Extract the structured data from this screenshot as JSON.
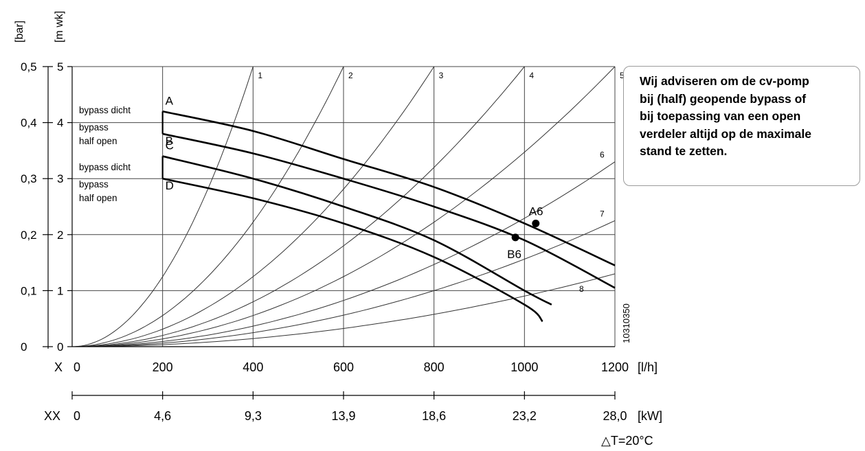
{
  "chart_data": {
    "type": "line",
    "y_axis_left": {
      "unit": "[bar]",
      "ticks": [
        "0",
        "0,1",
        "0,2",
        "0,3",
        "0,4",
        "0,5"
      ],
      "range": [
        0,
        0.5
      ]
    },
    "y_axis_right": {
      "unit": "[m wk]",
      "ticks": [
        "0",
        "1",
        "2",
        "3",
        "4",
        "5"
      ],
      "range": [
        0,
        5
      ]
    },
    "x_axis": {
      "name": "X",
      "unit": "[l/h]",
      "ticks": [
        "0",
        "200",
        "400",
        "600",
        "800",
        "1000",
        "1200"
      ],
      "range": [
        0,
        1200
      ]
    },
    "x_axis_2": {
      "name": "XX",
      "unit": "[kW]",
      "ticks": [
        "0",
        "4,6",
        "9,3",
        "13,9",
        "18,6",
        "23,2",
        "28,0"
      ]
    },
    "delta_t": "△T=20°C",
    "figure_id": "10310350",
    "grid": true,
    "series": [
      {
        "name": "A",
        "labels": [
          "bypass dicht"
        ],
        "x": [
          200,
          400,
          600,
          800,
          1000,
          1200
        ],
        "y": [
          4.2,
          3.85,
          3.35,
          2.85,
          2.2,
          1.45
        ]
      },
      {
        "name": "B",
        "labels": [
          "bypass",
          "half open"
        ],
        "x": [
          200,
          400,
          600,
          800,
          1000,
          1200
        ],
        "y": [
          3.8,
          3.45,
          3.0,
          2.5,
          1.9,
          1.05
        ]
      },
      {
        "name": "C",
        "labels": [
          "bypass dicht"
        ],
        "x": [
          200,
          400,
          600,
          800,
          1000,
          1060
        ],
        "y": [
          3.4,
          3.0,
          2.5,
          1.9,
          1.0,
          0.75
        ]
      },
      {
        "name": "D",
        "labels": [
          "bypass",
          "half open"
        ],
        "x": [
          200,
          400,
          600,
          800,
          1000,
          1040
        ],
        "y": [
          3.0,
          2.65,
          2.2,
          1.6,
          0.75,
          0.45
        ]
      }
    ],
    "system_curves": [
      {
        "name": "1",
        "end_x": 400,
        "end_y": 5.0
      },
      {
        "name": "2",
        "end_x": 600,
        "end_y": 5.0
      },
      {
        "name": "3",
        "end_x": 800,
        "end_y": 5.0
      },
      {
        "name": "4",
        "end_x": 1000,
        "end_y": 5.0
      },
      {
        "name": "5",
        "end_x": 1200,
        "end_y": 5.0
      },
      {
        "name": "6",
        "end_x": 1200,
        "end_y": 3.3
      },
      {
        "name": "7",
        "end_x": 1200,
        "end_y": 2.25
      },
      {
        "name": "8",
        "end_x": 1200,
        "end_y": 1.3
      }
    ],
    "points": [
      {
        "label": "A6",
        "x": 1025,
        "y": 2.2
      },
      {
        "label": "B6",
        "x": 980,
        "y": 1.95
      }
    ]
  },
  "note": {
    "lines": [
      "Wij adviseren om de cv-pomp",
      "bij (half) geopende bypass of",
      "bij toepassing van een open",
      "verdeler altijd op de maximale",
      "stand te zetten."
    ]
  }
}
